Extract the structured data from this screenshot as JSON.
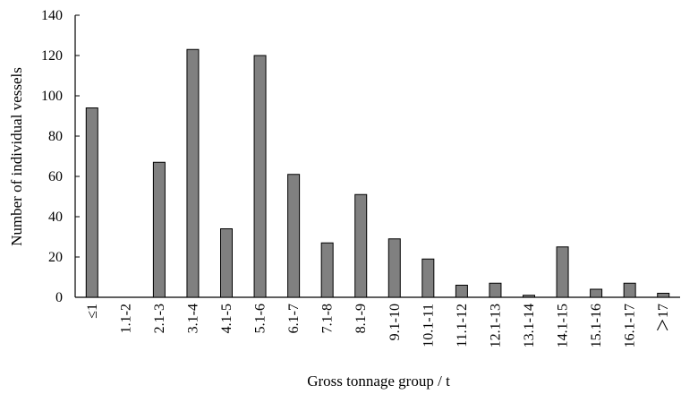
{
  "chart_data": {
    "type": "bar",
    "title": "",
    "xlabel": "Gross tonnage group / t",
    "ylabel": "Number of individual vessels",
    "categories": [
      "≤1",
      "1.1-2",
      "2.1-3",
      "3.1-4",
      "4.1-5",
      "5.1-6",
      "6.1-7",
      "7.1-8",
      "8.1-9",
      "9.1-10",
      "10.1-11",
      "11.1-12",
      "12.1-13",
      "13.1-14",
      "14.1-15",
      "15.1-16",
      "16.1-17",
      "＞17"
    ],
    "values": [
      94,
      0,
      67,
      123,
      34,
      120,
      61,
      27,
      51,
      29,
      19,
      6,
      7,
      1,
      25,
      4,
      7,
      2
    ],
    "ylim": [
      0,
      140
    ],
    "yticks": [
      0,
      20,
      40,
      60,
      80,
      100,
      120,
      140
    ],
    "grid": false,
    "legend": "none",
    "bar_color": "#808080",
    "bar_edge_color": "#000000"
  }
}
